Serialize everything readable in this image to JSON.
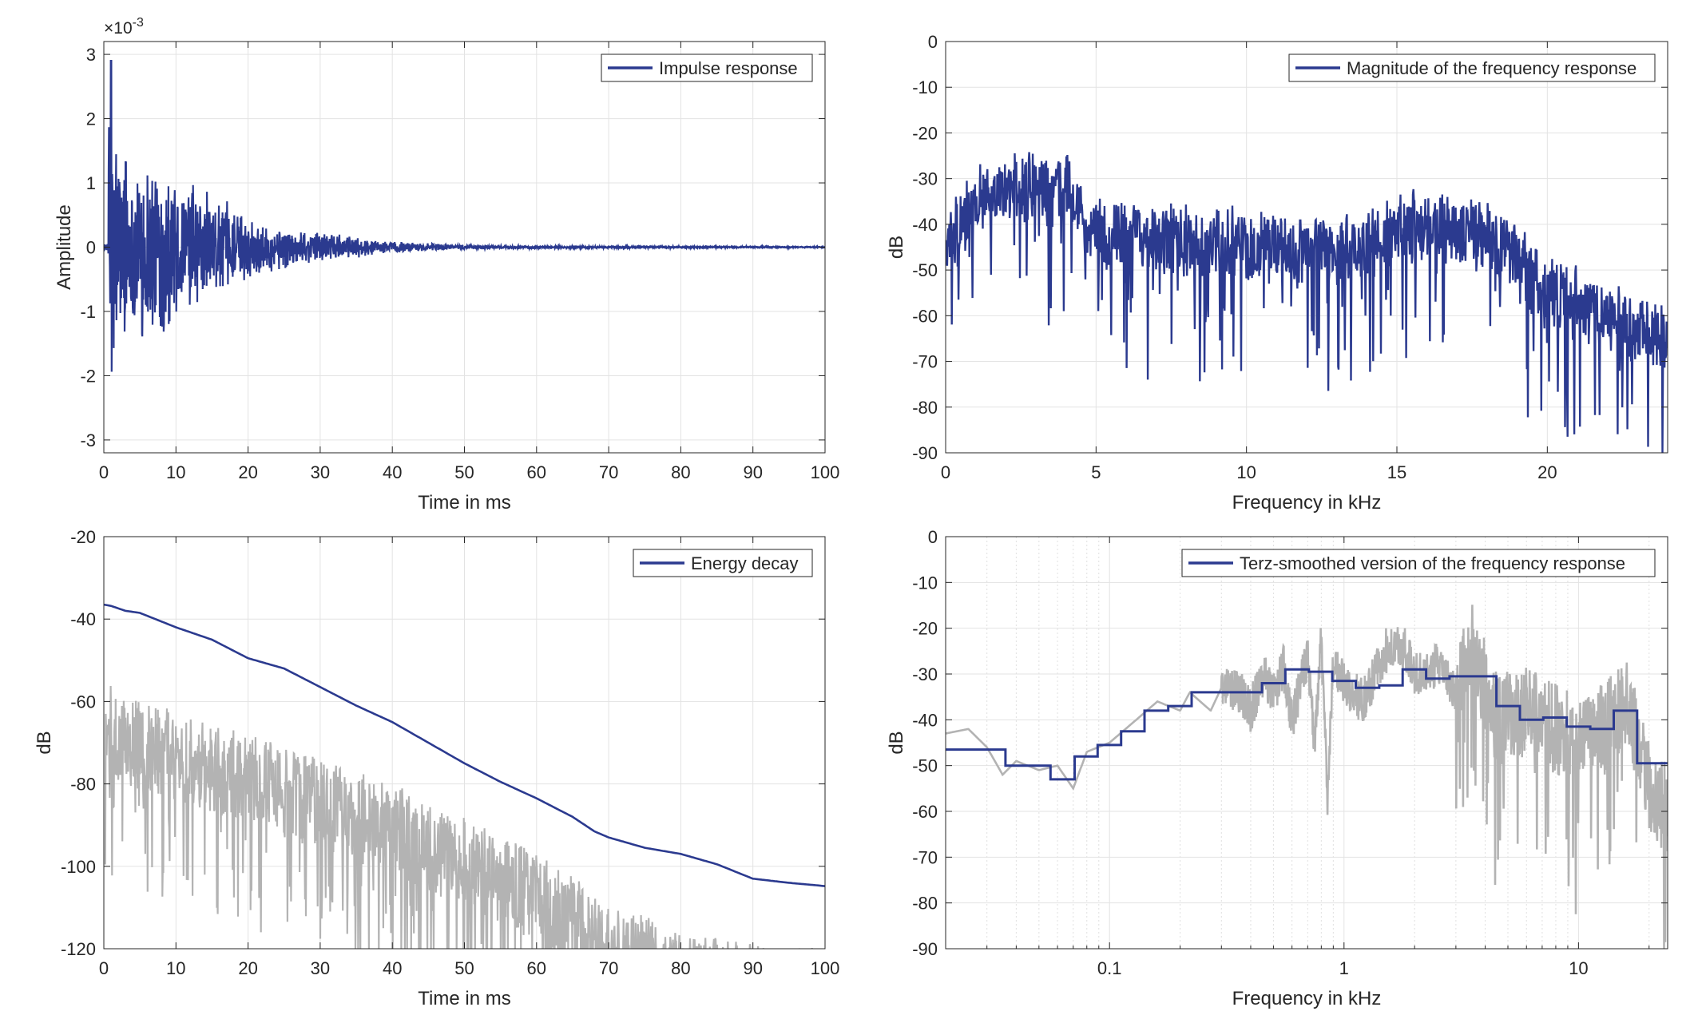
{
  "chart_data": [
    {
      "id": "impulse",
      "type": "line",
      "series": [
        {
          "name": "Impulse response",
          "color": "#2b3a8f"
        }
      ],
      "xlabel": "Time in ms",
      "ylabel": "Amplitude",
      "exponent_label": "×10",
      "exponent_power": "-3",
      "xlim": [
        0,
        100
      ],
      "ylim": [
        -3.2,
        3.2
      ],
      "xticks": [
        0,
        10,
        20,
        30,
        40,
        50,
        60,
        70,
        80,
        90,
        100
      ],
      "xtick_labels": [
        "0",
        "10",
        "20",
        "30",
        "40",
        "50",
        "60",
        "70",
        "80",
        "90",
        "100"
      ],
      "yticks": [
        -3,
        -2,
        -1,
        0,
        1,
        2,
        3
      ],
      "ytick_labels": [
        "-3",
        "-2",
        "-1",
        "0",
        "1",
        "2",
        "3"
      ],
      "grid": true,
      "legend": "top-right",
      "peak": {
        "x": 1,
        "y": 2.9
      },
      "envelope": [
        [
          0,
          0.05
        ],
        [
          1,
          2.9
        ],
        [
          2,
          1.6
        ],
        [
          5,
          1.7
        ],
        [
          10,
          1.2
        ],
        [
          15,
          0.9
        ],
        [
          20,
          0.5
        ],
        [
          25,
          0.35
        ],
        [
          30,
          0.25
        ],
        [
          40,
          0.1
        ],
        [
          50,
          0.04
        ],
        [
          60,
          0.02
        ],
        [
          100,
          0.01
        ]
      ]
    },
    {
      "id": "magnitude",
      "type": "line",
      "series": [
        {
          "name": "Magnitude of the frequency response",
          "color": "#2b3a8f"
        }
      ],
      "xlabel": "Frequency in kHz",
      "ylabel": "dB",
      "xlim": [
        0,
        24
      ],
      "ylim": [
        -90,
        0
      ],
      "xticks": [
        0,
        5,
        10,
        15,
        20
      ],
      "xtick_labels": [
        "0",
        "5",
        "10",
        "15",
        "20"
      ],
      "yticks": [
        0,
        -10,
        -20,
        -30,
        -40,
        -50,
        -60,
        -70,
        -80,
        -90
      ],
      "ytick_labels": [
        "0",
        "-10",
        "-20",
        "-30",
        "-40",
        "-50",
        "-60",
        "-70",
        "-80",
        "-90"
      ],
      "grid": true,
      "legend": "top-right",
      "trend": [
        [
          0,
          -45
        ],
        [
          1,
          -35
        ],
        [
          2,
          -32
        ],
        [
          4,
          -32
        ],
        [
          5,
          -42
        ],
        [
          8,
          -44
        ],
        [
          12,
          -46
        ],
        [
          14,
          -45
        ],
        [
          16,
          -40
        ],
        [
          18,
          -42
        ],
        [
          19,
          -48
        ],
        [
          20,
          -55
        ],
        [
          22,
          -60
        ],
        [
          24,
          -65
        ]
      ]
    },
    {
      "id": "energy",
      "type": "line",
      "series": [
        {
          "name": "Energy decay",
          "color": "#2b3a8f",
          "points": [
            [
              0,
              -36.5
            ],
            [
              1,
              -36.8
            ],
            [
              3,
              -38
            ],
            [
              5,
              -38.5
            ],
            [
              10,
              -42
            ],
            [
              15,
              -45
            ],
            [
              20,
              -49.5
            ],
            [
              25,
              -52
            ],
            [
              30,
              -56.5
            ],
            [
              35,
              -61
            ],
            [
              40,
              -65
            ],
            [
              45,
              -70
            ],
            [
              50,
              -75
            ],
            [
              55,
              -79.5
            ],
            [
              60,
              -83.5
            ],
            [
              65,
              -88
            ],
            [
              68,
              -91.5
            ],
            [
              70,
              -93
            ],
            [
              75,
              -95.5
            ],
            [
              80,
              -97
            ],
            [
              85,
              -99.5
            ],
            [
              90,
              -103
            ],
            [
              95,
              -104
            ],
            [
              100,
              -104.8
            ]
          ]
        },
        {
          "color": "#b3b3b3"
        }
      ],
      "xlabel": "Time in ms",
      "ylabel": "dB",
      "xlim": [
        0,
        100
      ],
      "ylim": [
        -120,
        -20
      ],
      "xticks": [
        0,
        10,
        20,
        30,
        40,
        50,
        60,
        70,
        80,
        90,
        100
      ],
      "xtick_labels": [
        "0",
        "10",
        "20",
        "30",
        "40",
        "50",
        "60",
        "70",
        "80",
        "90",
        "100"
      ],
      "yticks": [
        -20,
        -40,
        -60,
        -80,
        -100,
        -120
      ],
      "ytick_labels": [
        "-20",
        "-40",
        "-60",
        "-80",
        "-100",
        "-120"
      ],
      "grid": true,
      "legend": "top-right",
      "gray_upper": [
        [
          0,
          -55
        ],
        [
          5,
          -60
        ],
        [
          10,
          -62
        ],
        [
          20,
          -68
        ],
        [
          30,
          -74
        ],
        [
          40,
          -80
        ],
        [
          50,
          -88
        ],
        [
          60,
          -97
        ],
        [
          70,
          -108
        ],
        [
          80,
          -116
        ],
        [
          90,
          -119
        ],
        [
          100,
          -120
        ]
      ]
    },
    {
      "id": "terz",
      "type": "line",
      "series": [
        {
          "name": "Terz-smoothed version of the frequency response",
          "color": "#2b3a8f",
          "steps": [
            [
              0.02,
              -46.5
            ],
            [
              0.03,
              -46.5
            ],
            [
              0.036,
              -50
            ],
            [
              0.045,
              -50
            ],
            [
              0.056,
              -53
            ],
            [
              0.071,
              -48
            ],
            [
              0.089,
              -45.5
            ],
            [
              0.112,
              -42.5
            ],
            [
              0.141,
              -38
            ],
            [
              0.178,
              -37
            ],
            [
              0.224,
              -34
            ],
            [
              0.282,
              -34
            ],
            [
              0.355,
              -34
            ],
            [
              0.447,
              -32
            ],
            [
              0.562,
              -29
            ],
            [
              0.708,
              -29.5
            ],
            [
              0.891,
              -31.5
            ],
            [
              1.122,
              -33
            ],
            [
              1.413,
              -32.5
            ],
            [
              1.778,
              -29
            ],
            [
              2.239,
              -31
            ],
            [
              2.818,
              -30.5
            ],
            [
              3.548,
              -30.5
            ],
            [
              4.467,
              -37
            ],
            [
              5.623,
              -40
            ],
            [
              7.079,
              -39.5
            ],
            [
              8.913,
              -41.5
            ],
            [
              11.22,
              -42
            ],
            [
              14.13,
              -38
            ],
            [
              17.78,
              -49.5
            ],
            [
              24,
              -49.5
            ]
          ]
        },
        {
          "color": "#b3b3b3",
          "points": [
            [
              0.02,
              -43
            ],
            [
              0.025,
              -42
            ],
            [
              0.03,
              -46
            ],
            [
              0.035,
              -52
            ],
            [
              0.04,
              -49
            ],
            [
              0.05,
              -51
            ],
            [
              0.06,
              -50
            ],
            [
              0.07,
              -55
            ],
            [
              0.08,
              -47
            ],
            [
              0.1,
              -45
            ],
            [
              0.13,
              -40
            ],
            [
              0.16,
              -36
            ],
            [
              0.2,
              -38
            ],
            [
              0.22,
              -34
            ],
            [
              0.27,
              -38
            ],
            [
              0.3,
              -33
            ],
            [
              0.35,
              -33
            ],
            [
              0.4,
              -38
            ],
            [
              0.45,
              -30
            ],
            [
              0.5,
              -35
            ],
            [
              0.55,
              -28
            ],
            [
              0.6,
              -40
            ],
            [
              0.7,
              -26
            ],
            [
              0.75,
              -45
            ],
            [
              0.8,
              -22
            ],
            [
              0.85,
              -58
            ],
            [
              0.9,
              -28
            ],
            [
              1.0,
              -32
            ],
            [
              1.2,
              -36
            ],
            [
              1.5,
              -25
            ],
            [
              1.8,
              -24
            ],
            [
              2.0,
              -30
            ],
            [
              2.5,
              -28
            ],
            [
              3.0,
              -34
            ],
            [
              3.5,
              -24
            ],
            [
              4.5,
              -40
            ],
            [
              6,
              -38
            ],
            [
              8,
              -42
            ],
            [
              10,
              -44
            ],
            [
              13,
              -42
            ],
            [
              16,
              -35
            ],
            [
              18,
              -45
            ],
            [
              20,
              -55
            ],
            [
              24,
              -60
            ]
          ]
        }
      ],
      "xlabel": "Frequency in kHz",
      "ylabel": "dB",
      "xscale": "log",
      "xlim": [
        0.02,
        24
      ],
      "ylim": [
        -90,
        0
      ],
      "xticks": [
        0.1,
        1,
        10
      ],
      "xtick_labels": [
        "0.1",
        "1",
        "10"
      ],
      "yticks": [
        0,
        -10,
        -20,
        -30,
        -40,
        -50,
        -60,
        -70,
        -80,
        -90
      ],
      "ytick_labels": [
        "0",
        "-10",
        "-20",
        "-30",
        "-40",
        "-50",
        "-60",
        "-70",
        "-80",
        "-90"
      ],
      "grid": true,
      "legend": "top-right"
    }
  ]
}
